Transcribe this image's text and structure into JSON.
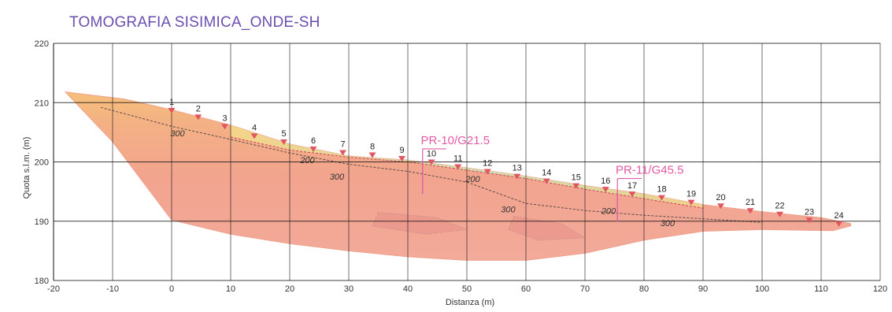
{
  "chart_data": {
    "type": "contour-section",
    "title": "TOMOGRAFIA SISIMICA_ONDE-SH",
    "xlabel": "Distanza (m)",
    "ylabel": "Quota s.l.m. (m)",
    "xlim": [
      -20,
      120
    ],
    "ylim": [
      180,
      220
    ],
    "xticks": [
      "-20",
      "-10",
      "0",
      "10",
      "20",
      "30",
      "40",
      "50",
      "60",
      "70",
      "80",
      "90",
      "100",
      "110",
      "120"
    ],
    "yticks": [
      "180",
      "190",
      "200",
      "210",
      "220"
    ],
    "grid": true,
    "surface": [
      {
        "x": -18,
        "y": 211.8
      },
      {
        "x": -8,
        "y": 210.6
      },
      {
        "x": 0,
        "y": 208.8
      },
      {
        "x": 10,
        "y": 206.2
      },
      {
        "x": 20,
        "y": 203.0
      },
      {
        "x": 30,
        "y": 201.0
      },
      {
        "x": 40,
        "y": 200.3
      },
      {
        "x": 50,
        "y": 199.0
      },
      {
        "x": 60,
        "y": 197.6
      },
      {
        "x": 70,
        "y": 196.0
      },
      {
        "x": 80,
        "y": 194.6
      },
      {
        "x": 90,
        "y": 192.8
      },
      {
        "x": 100,
        "y": 191.6
      },
      {
        "x": 110,
        "y": 190.6
      },
      {
        "x": 115,
        "y": 189.6
      }
    ],
    "base": [
      {
        "x": 115,
        "y": 189.2
      },
      {
        "x": 112,
        "y": 188.4
      },
      {
        "x": 100,
        "y": 188.6
      },
      {
        "x": 90,
        "y": 188.3
      },
      {
        "x": 80,
        "y": 186.8
      },
      {
        "x": 70,
        "y": 184.6
      },
      {
        "x": 60,
        "y": 183.4
      },
      {
        "x": 50,
        "y": 183.4
      },
      {
        "x": 40,
        "y": 184.0
      },
      {
        "x": 30,
        "y": 185.0
      },
      {
        "x": 20,
        "y": 186.2
      },
      {
        "x": 10,
        "y": 187.8
      },
      {
        "x": 0,
        "y": 190.2
      },
      {
        "x": -10,
        "y": 203.4
      },
      {
        "x": -18,
        "y": 211.8
      }
    ],
    "contours": [
      {
        "value": "300",
        "points": [
          {
            "x": -12,
            "y": 209.2
          },
          {
            "x": 0,
            "y": 206.0
          },
          {
            "x": 10,
            "y": 203.8
          },
          {
            "x": 20,
            "y": 201.5
          },
          {
            "x": 30,
            "y": 199.6
          },
          {
            "x": 40,
            "y": 198.4
          },
          {
            "x": 50,
            "y": 196.6
          },
          {
            "x": 60,
            "y": 193.0
          },
          {
            "x": 70,
            "y": 191.8
          },
          {
            "x": 80,
            "y": 191.0
          },
          {
            "x": 90,
            "y": 190.4
          },
          {
            "x": 100,
            "y": 189.8
          }
        ]
      },
      {
        "value": "200",
        "points": [
          {
            "x": 10,
            "y": 204.2
          },
          {
            "x": 20,
            "y": 202.0
          },
          {
            "x": 30,
            "y": 200.8
          },
          {
            "x": 40,
            "y": 200.0
          },
          {
            "x": 50,
            "y": 198.6
          },
          {
            "x": 60,
            "y": 197.2
          },
          {
            "x": 70,
            "y": 195.4
          },
          {
            "x": 80,
            "y": 193.8
          },
          {
            "x": 90,
            "y": 192.2
          }
        ]
      }
    ],
    "contour_labels": [
      {
        "text": "300",
        "x": 1,
        "y": 204.3
      },
      {
        "text": "200",
        "x": 23,
        "y": 199.8
      },
      {
        "text": "300",
        "x": 28,
        "y": 197.0
      },
      {
        "text": "200",
        "x": 51,
        "y": 196.6
      },
      {
        "text": "300",
        "x": 57,
        "y": 191.5
      },
      {
        "text": "200",
        "x": 74,
        "y": 191.2
      },
      {
        "text": "300",
        "x": 84,
        "y": 189.2
      }
    ],
    "geophones": [
      {
        "label": "1",
        "x": 0,
        "y": 208.3
      },
      {
        "label": "2",
        "x": 4.5,
        "y": 207.2
      },
      {
        "label": "3",
        "x": 9,
        "y": 205.6
      },
      {
        "label": "4",
        "x": 14,
        "y": 204.0
      },
      {
        "label": "5",
        "x": 19,
        "y": 203.0
      },
      {
        "label": "6",
        "x": 24,
        "y": 201.8
      },
      {
        "label": "7",
        "x": 29,
        "y": 201.2
      },
      {
        "label": "8",
        "x": 34,
        "y": 200.8
      },
      {
        "label": "9",
        "x": 39,
        "y": 200.2
      },
      {
        "label": "10",
        "x": 44,
        "y": 199.6
      },
      {
        "label": "11",
        "x": 48.5,
        "y": 198.8
      },
      {
        "label": "12",
        "x": 53.5,
        "y": 198.0
      },
      {
        "label": "13",
        "x": 58.5,
        "y": 197.2
      },
      {
        "label": "14",
        "x": 63.5,
        "y": 196.4
      },
      {
        "label": "15",
        "x": 68.5,
        "y": 195.6
      },
      {
        "label": "16",
        "x": 73.5,
        "y": 195.0
      },
      {
        "label": "17",
        "x": 78,
        "y": 194.2
      },
      {
        "label": "18",
        "x": 83,
        "y": 193.6
      },
      {
        "label": "19",
        "x": 88,
        "y": 192.8
      },
      {
        "label": "20",
        "x": 93,
        "y": 192.2
      },
      {
        "label": "21",
        "x": 98,
        "y": 191.4
      },
      {
        "label": "22",
        "x": 103,
        "y": 190.8
      },
      {
        "label": "23",
        "x": 108,
        "y": 189.8
      },
      {
        "label": "24",
        "x": 113,
        "y": 189.2
      }
    ],
    "boreholes": [
      {
        "label": "PR-10/G21.5",
        "x": 42.5,
        "top": 200.0,
        "bottom": 194.6,
        "label_x": 42.2,
        "label_y": 203.0,
        "tick_to_x": 46.5,
        "tick_y": 202.2
      },
      {
        "label": "PR-11/G45.5",
        "x": 75.5,
        "top": 194.9,
        "bottom": 189.9,
        "label_x": 75.2,
        "label_y": 198.0,
        "tick_to_x": 79.6,
        "tick_y": 197.2
      }
    ],
    "colors": {
      "title": "#6a4fb0",
      "geophone": "#e05560",
      "borehole": "#e35aa6",
      "grid": "#111111",
      "fill_low_velocity": "#bfe0b8",
      "fill_mid_velocity": "#f2d080",
      "fill_high_velocity": "#f2a898"
    }
  }
}
